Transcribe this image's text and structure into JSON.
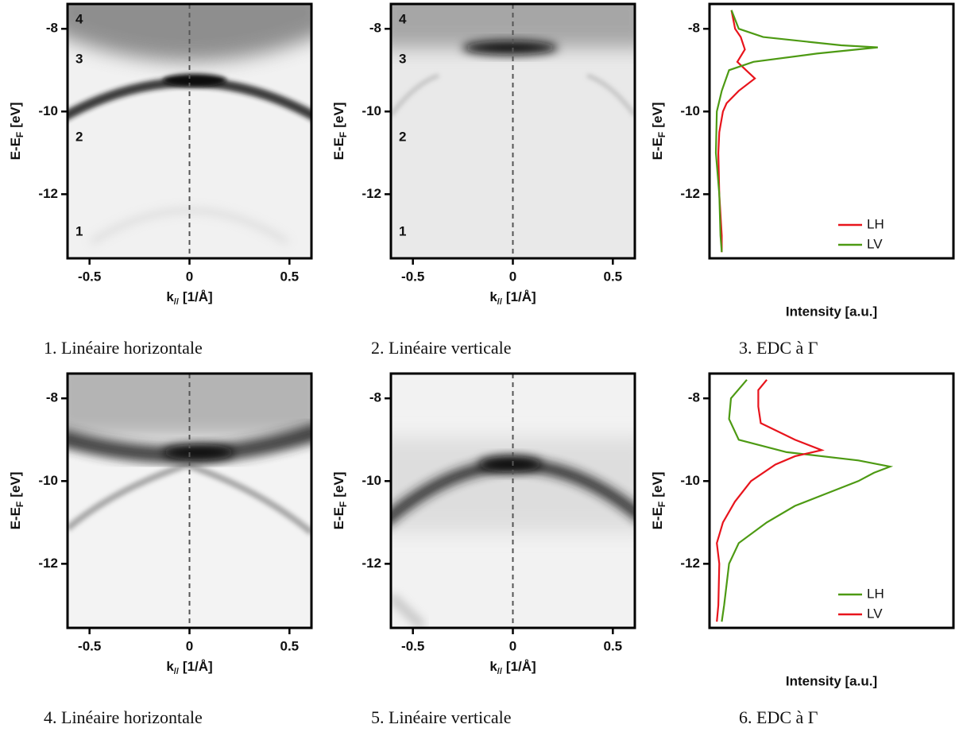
{
  "chart_data": [
    {
      "type": "image",
      "caption": "1. Linéaire horizontale",
      "xlabel": {
        "main": "k",
        "sub": "//",
        "unit": "[1/Å]"
      },
      "ylabel": {
        "main": "E-E",
        "sub": "F",
        "unit": "[eV]"
      },
      "xlim": [
        -0.61,
        0.61
      ],
      "ylim": [
        -13.55,
        -7.4
      ],
      "xticks": [
        -0.5,
        0,
        0.5
      ],
      "yticks": [
        -8,
        -10,
        -12
      ],
      "annotations": [
        "4",
        "3",
        "2",
        "1"
      ]
    },
    {
      "type": "image",
      "caption": "2. Linéaire verticale",
      "xlabel": {
        "main": "k",
        "sub": "//",
        "unit": "[1/Å]"
      },
      "ylabel": {
        "main": "E-E",
        "sub": "F",
        "unit": "[eV]"
      },
      "xlim": [
        -0.61,
        0.61
      ],
      "ylim": [
        -13.55,
        -7.4
      ],
      "xticks": [
        -0.5,
        0,
        0.5
      ],
      "yticks": [
        -8,
        -10,
        -12
      ],
      "annotations": [
        "4",
        "3",
        "2",
        "1"
      ]
    },
    {
      "type": "line",
      "caption": "3. EDC à Γ",
      "xlabel": "Intensity [a.u.]",
      "ylabel": {
        "main": "E-E",
        "sub": "F",
        "unit": "[eV]"
      },
      "xlim": [
        0,
        1
      ],
      "ylim": [
        -13.55,
        -7.4
      ],
      "yticks": [
        -8,
        -10,
        -12
      ],
      "series": [
        {
          "name": "LH",
          "color": "#e8141c",
          "x": [
            0.09,
            0.105,
            0.128,
            0.145,
            0.114,
            0.15,
            0.186,
            0.12,
            0.07,
            0.055,
            0.04,
            0.036,
            0.04,
            0.05,
            0.05
          ],
          "y": [
            -7.55,
            -8,
            -8.2,
            -8.5,
            -8.8,
            -9,
            -9.2,
            -9.5,
            -9.8,
            -10,
            -10.5,
            -11,
            -12,
            -13,
            -13.4
          ]
        },
        {
          "name": "LV",
          "color": "#4d9a13",
          "x": [
            0.09,
            0.12,
            0.22,
            0.54,
            0.69,
            0.44,
            0.18,
            0.08,
            0.05,
            0.03,
            0.026,
            0.04,
            0.045,
            0.05
          ],
          "y": [
            -7.55,
            -8,
            -8.2,
            -8.4,
            -8.45,
            -8.6,
            -8.8,
            -9,
            -9.5,
            -10,
            -11,
            -12,
            -13,
            -13.4
          ]
        }
      ]
    },
    {
      "type": "image",
      "caption": "4. Linéaire horizontale",
      "xlabel": {
        "main": "k",
        "sub": "//",
        "unit": "[1/Å]"
      },
      "ylabel": {
        "main": "E-E",
        "sub": "F",
        "unit": "[eV]"
      },
      "xlim": [
        -0.61,
        0.61
      ],
      "ylim": [
        -13.55,
        -7.4
      ],
      "xticks": [
        -0.5,
        0,
        0.5
      ],
      "yticks": [
        -8,
        -10,
        -12
      ]
    },
    {
      "type": "image",
      "caption": "5. Linéaire verticale",
      "xlabel": {
        "main": "k",
        "sub": "//",
        "unit": "[1/Å]"
      },
      "ylabel": {
        "main": "E-E",
        "sub": "F",
        "unit": "[eV]"
      },
      "xlim": [
        -0.61,
        0.61
      ],
      "ylim": [
        -13.55,
        -7.4
      ],
      "xticks": [
        -0.5,
        0,
        0.5
      ],
      "yticks": [
        -8,
        -10,
        -12
      ]
    },
    {
      "type": "line",
      "caption": "6. EDC à Γ",
      "xlabel": "Intensity [a.u.]",
      "ylabel": {
        "main": "E-E",
        "sub": "F",
        "unit": "[eV]"
      },
      "xlim": [
        0,
        1
      ],
      "ylim": [
        -13.55,
        -7.4
      ],
      "yticks": [
        -8,
        -10,
        -12
      ],
      "series": [
        {
          "name": "LH",
          "color": "#4d9a13",
          "x": [
            0.153,
            0.088,
            0.08,
            0.12,
            0.316,
            0.61,
            0.74,
            0.674,
            0.61,
            0.48,
            0.35,
            0.235,
            0.12,
            0.08,
            0.07,
            0.06,
            0.05
          ],
          "y": [
            -7.55,
            -8,
            -8.5,
            -9,
            -9.3,
            -9.5,
            -9.65,
            -9.8,
            -10,
            -10.3,
            -10.6,
            -11,
            -11.5,
            -12,
            -12.5,
            -13,
            -13.4
          ]
        },
        {
          "name": "LV",
          "color": "#e8141c",
          "x": [
            0.235,
            0.2,
            0.2,
            0.21,
            0.35,
            0.46,
            0.35,
            0.27,
            0.17,
            0.104,
            0.055,
            0.03,
            0.04,
            0.036,
            0.03
          ],
          "y": [
            -7.55,
            -7.8,
            -8.2,
            -8.6,
            -9,
            -9.25,
            -9.4,
            -9.6,
            -10,
            -10.5,
            -11,
            -11.5,
            -12,
            -13,
            -13.4
          ]
        }
      ]
    }
  ]
}
